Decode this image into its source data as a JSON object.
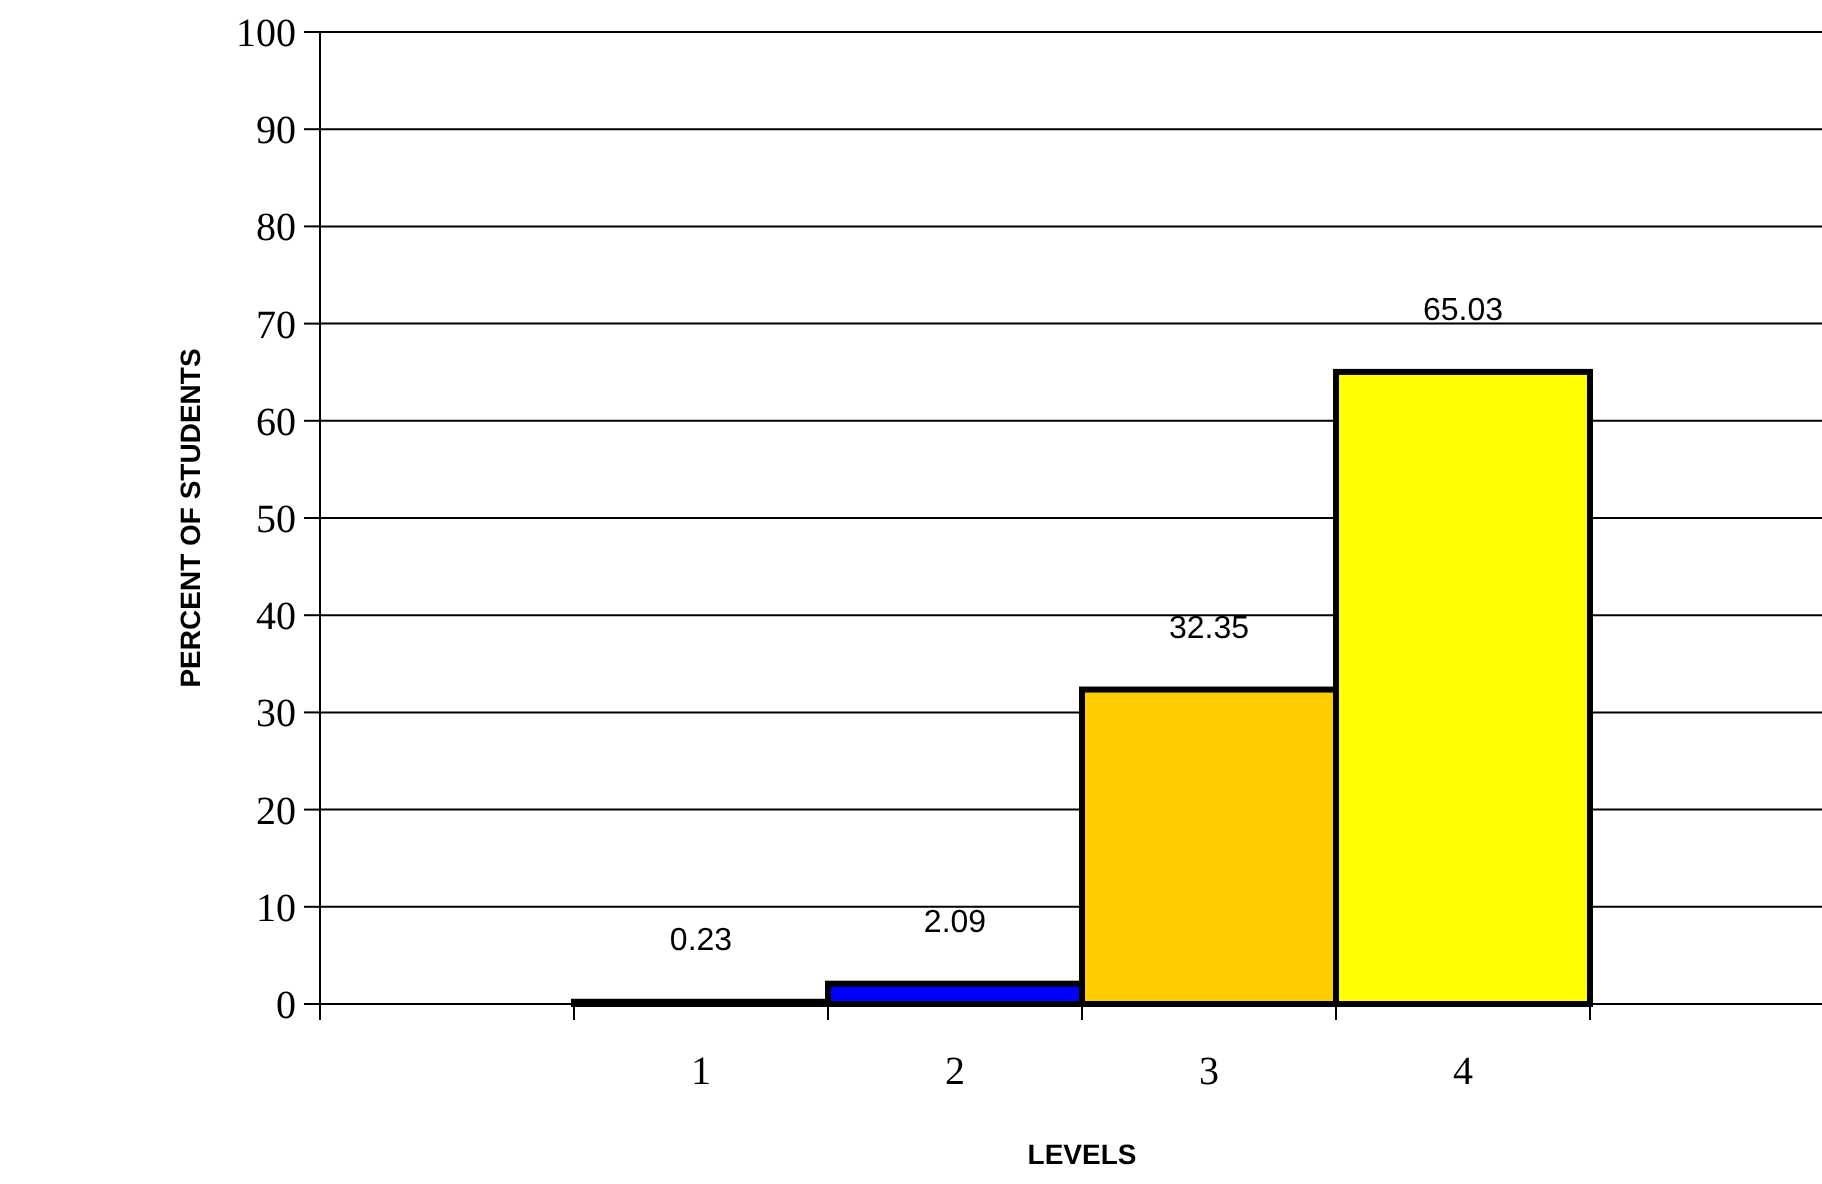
{
  "chart_data": {
    "type": "bar",
    "xlabel": "LEVELS",
    "ylabel": "PERCENT OF STUDENTS",
    "categories": [
      null,
      "1",
      "2",
      "3",
      "4",
      null
    ],
    "values": [
      null,
      0.23,
      2.09,
      32.35,
      65.03,
      null
    ],
    "colors": [
      null,
      "#800000",
      "#0000ff",
      "#ffcc00",
      "#ffff00",
      null
    ],
    "data_labels": true,
    "ylim": [
      0,
      100
    ],
    "yticks": [
      0,
      10,
      20,
      30,
      40,
      50,
      60,
      70,
      80,
      90,
      100
    ],
    "grid": "y"
  }
}
